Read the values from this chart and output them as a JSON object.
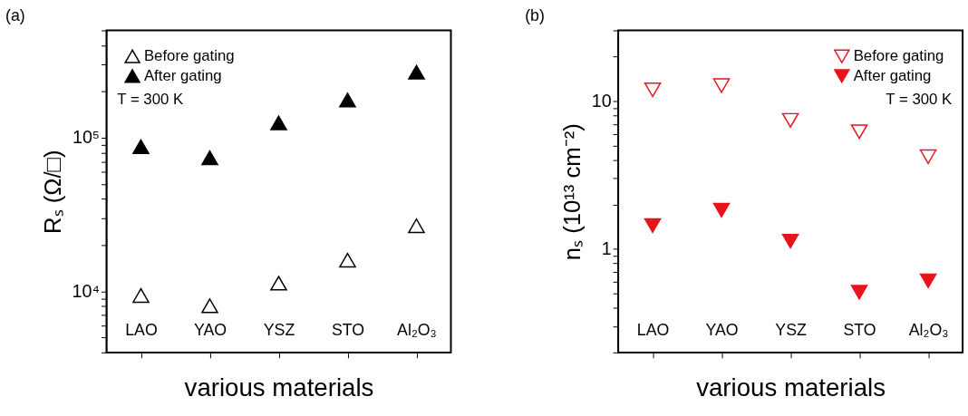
{
  "chart_data": [
    {
      "type": "scatter",
      "title": "(a)",
      "xlabel": "various materials",
      "ylabel": "Rₛ (Ω/□)",
      "categories": [
        "LAO",
        "YAO",
        "YSZ",
        "STO",
        "Al₂O₃"
      ],
      "series": [
        {
          "name": "Before gating",
          "color": "#000000",
          "marker": "triangle-up",
          "values": [
            9400,
            8050,
            11300,
            15950,
            26700
          ]
        },
        {
          "name": "After gating",
          "color": "#000000",
          "marker": "triangle-up",
          "values": [
            87500,
            74100,
            125000,
            176000,
            267000
          ]
        }
      ],
      "log": "y",
      "ylim": [
        4000,
        500000
      ],
      "yticks": [
        {
          "value": 4000,
          "label": null
        },
        {
          "value": 5000,
          "label": null
        },
        {
          "value": 6000,
          "label": null
        },
        {
          "value": 7000,
          "label": null
        },
        {
          "value": 8000,
          "label": null
        },
        {
          "value": 9000,
          "label": null
        },
        {
          "value": 10000,
          "label": "10⁴"
        },
        {
          "value": 20000,
          "label": null
        },
        {
          "value": 30000,
          "label": null
        },
        {
          "value": 40000,
          "label": null
        },
        {
          "value": 50000,
          "label": null
        },
        {
          "value": 60000,
          "label": null
        },
        {
          "value": 70000,
          "label": null
        },
        {
          "value": 80000,
          "label": null
        },
        {
          "value": 90000,
          "label": null
        },
        {
          "value": 100000,
          "label": "10⁵"
        },
        {
          "value": 200000,
          "label": null
        },
        {
          "value": 300000,
          "label": null
        },
        {
          "value": 400000,
          "label": null
        },
        {
          "value": 500000,
          "label": null
        }
      ],
      "legend": "top left",
      "grid": false,
      "annotations": [
        "T = 300 K"
      ]
    },
    {
      "type": "scatter",
      "title": "(b)",
      "xlabel": "various materials",
      "ylabel": "nₛ (10¹³ cm⁻²)",
      "categories": [
        "LAO",
        "YAO",
        "YSZ",
        "STO",
        "Al₂O₃"
      ],
      "series": [
        {
          "name": "Before gating",
          "color": "#e8141c",
          "marker": "triangle-down",
          "values": [
            11.9,
            12.7,
            7.4,
            6.2,
            4.2
          ]
        },
        {
          "name": "After gating",
          "color": "#e8141c",
          "marker": "triangle-down",
          "values": [
            1.44,
            1.83,
            1.13,
            0.51,
            0.61
          ]
        }
      ],
      "log": "y",
      "ylim": [
        0.2,
        30
      ],
      "yticks": [
        {
          "value": 0.2,
          "label": null
        },
        {
          "value": 0.3,
          "label": null
        },
        {
          "value": 0.4,
          "label": null
        },
        {
          "value": 0.5,
          "label": null
        },
        {
          "value": 0.6,
          "label": null
        },
        {
          "value": 0.7,
          "label": null
        },
        {
          "value": 0.8,
          "label": null
        },
        {
          "value": 0.9,
          "label": null
        },
        1,
        {
          "value": 2,
          "label": null
        },
        {
          "value": 3,
          "label": null
        },
        {
          "value": 4,
          "label": null
        },
        {
          "value": 5,
          "label": null
        },
        {
          "value": 6,
          "label": null
        },
        {
          "value": 7,
          "label": null
        },
        {
          "value": 8,
          "label": null
        },
        {
          "value": 9,
          "label": null
        },
        10,
        {
          "value": 20,
          "label": null
        },
        {
          "value": 30,
          "label": null
        }
      ],
      "legend": "top right",
      "grid": false,
      "annotations": [
        "T = 300 K"
      ]
    }
  ]
}
